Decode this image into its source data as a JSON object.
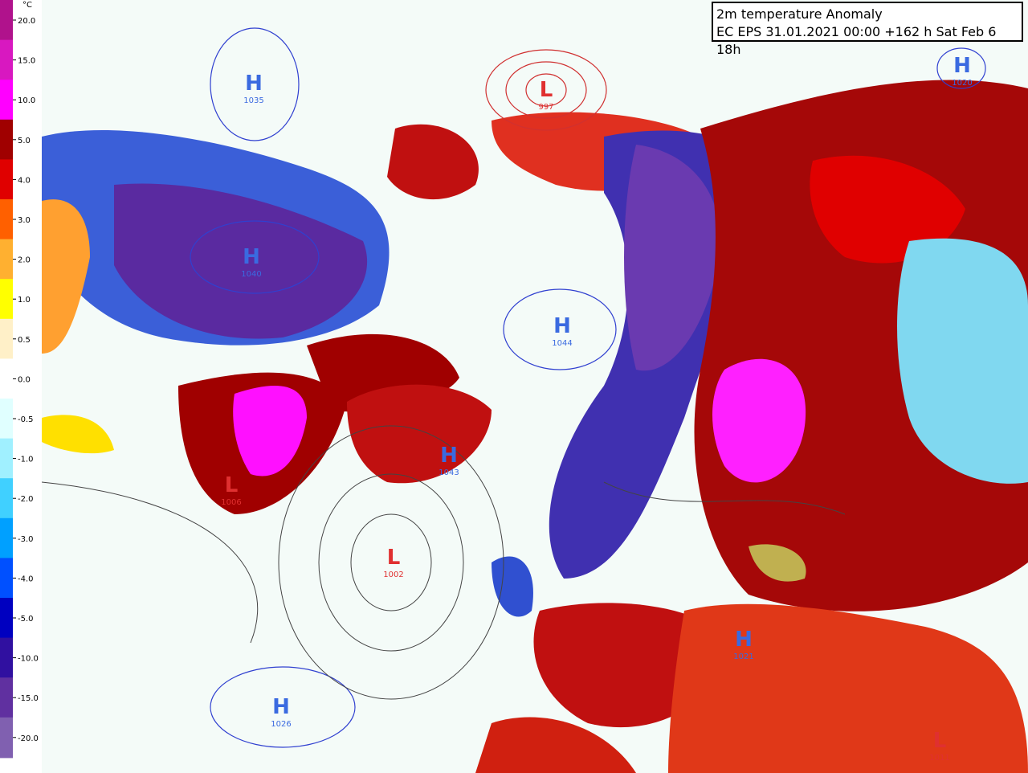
{
  "title": {
    "line1": "2m temperature Anomaly",
    "line2": "EC EPS 31.01.2021 00:00 +162 h Sat Feb 6 18h"
  },
  "legend": {
    "unit": "°C",
    "labels": [
      "20.0",
      "15.0",
      "10.0",
      "5.0",
      "4.0",
      "3.0",
      "2.0",
      "1.0",
      "0.5",
      "0.0",
      "-0.5",
      "-1.0",
      "-2.0",
      "-3.0",
      "-4.0",
      "-5.0",
      "-10.0",
      "-15.0",
      "-20.0"
    ]
  },
  "pressure_systems": [
    {
      "letter": "H",
      "value": "1035"
    },
    {
      "letter": "H",
      "value": "1040"
    },
    {
      "letter": "H",
      "value": "1044"
    },
    {
      "letter": "H",
      "value": "1043"
    },
    {
      "letter": "L",
      "value": "997"
    },
    {
      "letter": "L",
      "value": "1006"
    },
    {
      "letter": "L",
      "value": "1002"
    },
    {
      "letter": "H",
      "value": "1026"
    },
    {
      "letter": "H",
      "value": "1020"
    },
    {
      "letter": "H",
      "value": "1021"
    },
    {
      "letter": "L",
      "value": "1011"
    }
  ]
}
